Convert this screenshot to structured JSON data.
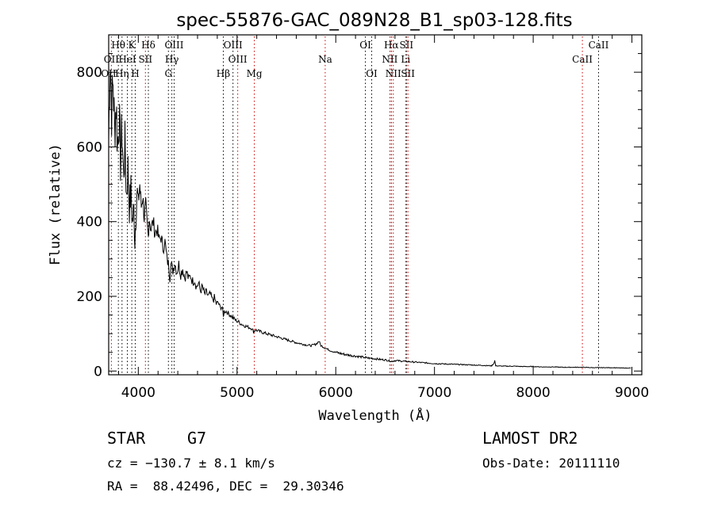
{
  "chart_data": {
    "type": "line",
    "title": "spec-55876-GAC_089N28_B1_sp03-128.fits",
    "xlabel": "Wavelength (Å)",
    "ylabel": "Flux (relative)",
    "xlim": [
      3700,
      9100
    ],
    "ylim": [
      -10,
      900
    ],
    "xticks": [
      4000,
      5000,
      6000,
      7000,
      8000,
      9000
    ],
    "yticks": [
      0,
      200,
      400,
      600,
      800
    ],
    "grid": false,
    "series": [
      {
        "color": "#000000",
        "points": [
          [
            3700,
            620
          ],
          [
            3715,
            850
          ],
          [
            3730,
            700
          ],
          [
            3745,
            780
          ],
          [
            3760,
            640
          ],
          [
            3775,
            720
          ],
          [
            3790,
            600
          ],
          [
            3805,
            690
          ],
          [
            3820,
            560
          ],
          [
            3835,
            650
          ],
          [
            3850,
            520
          ],
          [
            3865,
            600
          ],
          [
            3880,
            470
          ],
          [
            3895,
            540
          ],
          [
            3910,
            440
          ],
          [
            3925,
            480
          ],
          [
            3940,
            400
          ],
          [
            3955,
            430
          ],
          [
            3965,
            350
          ],
          [
            3975,
            420
          ],
          [
            3985,
            480
          ],
          [
            4000,
            450
          ],
          [
            4015,
            500
          ],
          [
            4030,
            440
          ],
          [
            4045,
            470
          ],
          [
            4060,
            410
          ],
          [
            4075,
            440
          ],
          [
            4090,
            390
          ],
          [
            4101,
            360
          ],
          [
            4110,
            410
          ],
          [
            4130,
            380
          ],
          [
            4150,
            400
          ],
          [
            4170,
            370
          ],
          [
            4190,
            380
          ],
          [
            4210,
            350
          ],
          [
            4230,
            360
          ],
          [
            4250,
            330
          ],
          [
            4270,
            345
          ],
          [
            4290,
            300
          ],
          [
            4310,
            280
          ],
          [
            4320,
            250
          ],
          [
            4330,
            285
          ],
          [
            4350,
            270
          ],
          [
            4370,
            290
          ],
          [
            4390,
            265
          ],
          [
            4410,
            285
          ],
          [
            4430,
            260
          ],
          [
            4450,
            275
          ],
          [
            4470,
            250
          ],
          [
            4490,
            265
          ],
          [
            4510,
            245
          ],
          [
            4530,
            255
          ],
          [
            4550,
            240
          ],
          [
            4570,
            245
          ],
          [
            4590,
            225
          ],
          [
            4610,
            235
          ],
          [
            4630,
            215
          ],
          [
            4650,
            225
          ],
          [
            4670,
            205
          ],
          [
            4690,
            210
          ],
          [
            4710,
            200
          ],
          [
            4730,
            205
          ],
          [
            4750,
            190
          ],
          [
            4770,
            195
          ],
          [
            4790,
            180
          ],
          [
            4810,
            183
          ],
          [
            4830,
            170
          ],
          [
            4850,
            172
          ],
          [
            4861,
            145
          ],
          [
            4870,
            160
          ],
          [
            4890,
            160
          ],
          [
            4910,
            155
          ],
          [
            4930,
            150
          ],
          [
            4950,
            145
          ],
          [
            4970,
            140
          ],
          [
            4990,
            135
          ],
          [
            5010,
            133
          ],
          [
            5030,
            128
          ],
          [
            5050,
            125
          ],
          [
            5070,
            122
          ],
          [
            5090,
            120
          ],
          [
            5110,
            118
          ],
          [
            5130,
            116
          ],
          [
            5150,
            114
          ],
          [
            5167,
            105
          ],
          [
            5175,
            108
          ],
          [
            5190,
            110
          ],
          [
            5210,
            108
          ],
          [
            5230,
            106
          ],
          [
            5250,
            104
          ],
          [
            5300,
            100
          ],
          [
            5350,
            96
          ],
          [
            5400,
            92
          ],
          [
            5450,
            88
          ],
          [
            5500,
            84
          ],
          [
            5550,
            80
          ],
          [
            5600,
            76
          ],
          [
            5650,
            73
          ],
          [
            5700,
            70
          ],
          [
            5750,
            68
          ],
          [
            5800,
            72
          ],
          [
            5830,
            80
          ],
          [
            5850,
            68
          ],
          [
            5890,
            62
          ],
          [
            5920,
            58
          ],
          [
            5950,
            54
          ],
          [
            6000,
            50
          ],
          [
            6050,
            47
          ],
          [
            6100,
            44
          ],
          [
            6150,
            42
          ],
          [
            6200,
            40
          ],
          [
            6250,
            38
          ],
          [
            6300,
            36
          ],
          [
            6350,
            34
          ],
          [
            6400,
            33
          ],
          [
            6450,
            31
          ],
          [
            6500,
            30
          ],
          [
            6563,
            26
          ],
          [
            6600,
            28
          ],
          [
            6650,
            27
          ],
          [
            6700,
            26
          ],
          [
            6750,
            25
          ],
          [
            6800,
            24
          ],
          [
            6850,
            23
          ],
          [
            6900,
            22
          ],
          [
            6950,
            21
          ],
          [
            7000,
            20
          ],
          [
            7100,
            19
          ],
          [
            7200,
            18
          ],
          [
            7300,
            17
          ],
          [
            7400,
            16
          ],
          [
            7500,
            15
          ],
          [
            7580,
            14
          ],
          [
            7600,
            20
          ],
          [
            7610,
            28
          ],
          [
            7620,
            14
          ],
          [
            7700,
            13
          ],
          [
            7800,
            13
          ],
          [
            7900,
            12
          ],
          [
            8000,
            12
          ],
          [
            8100,
            11
          ],
          [
            8200,
            11
          ],
          [
            8300,
            10
          ],
          [
            8400,
            10
          ],
          [
            8500,
            10
          ],
          [
            8600,
            9
          ],
          [
            8700,
            9
          ],
          [
            8800,
            9
          ],
          [
            8900,
            8
          ],
          [
            8990,
            8
          ]
        ]
      }
    ],
    "spectral_lines": [
      {
        "label": "Hθ",
        "wavelength": 3798,
        "color": "#000000",
        "row": 0
      },
      {
        "label": "K",
        "wavelength": 3934,
        "color": "#000000",
        "row": 0
      },
      {
        "label": "Hδ",
        "wavelength": 4102,
        "color": "#000000",
        "row": 0
      },
      {
        "label": "OIII",
        "wavelength": 4363,
        "color": "#000000",
        "row": 0
      },
      {
        "label": "OIII",
        "wavelength": 4959,
        "color": "#000000",
        "row": 0
      },
      {
        "label": "OI",
        "wavelength": 6300,
        "color": "#000000",
        "row": 0
      },
      {
        "label": "Hα",
        "wavelength": 6563,
        "color": "#000000",
        "row": 0
      },
      {
        "label": "SII",
        "wavelength": 6716,
        "color": "#000000",
        "row": 0
      },
      {
        "label": "CaII",
        "wavelength": 8662,
        "color": "#000000",
        "row": 0
      },
      {
        "label": "OII",
        "wavelength": 3727,
        "color": "#cc0000",
        "row": 1
      },
      {
        "label": "HeI",
        "wavelength": 3889,
        "color": "#000000",
        "row": 1
      },
      {
        "label": "SII",
        "wavelength": 4072,
        "color": "#cc0000",
        "row": 1
      },
      {
        "label": "Hγ",
        "wavelength": 4340,
        "color": "#000000",
        "row": 1
      },
      {
        "label": "OIII",
        "wavelength": 5007,
        "color": "#cc0000",
        "row": 1
      },
      {
        "label": "Na",
        "wavelength": 5893,
        "color": "#cc0000",
        "row": 1
      },
      {
        "label": "NII",
        "wavelength": 6548,
        "color": "#cc0000",
        "row": 1
      },
      {
        "label": "Li",
        "wavelength": 6708,
        "color": "#cc0000",
        "row": 1
      },
      {
        "label": "CaII",
        "wavelength": 8498,
        "color": "#cc0000",
        "row": 1
      },
      {
        "label": "OII",
        "wavelength": 3700,
        "color": "#cc0000",
        "row": 2
      },
      {
        "label": "Hη",
        "wavelength": 3835,
        "color": "#000000",
        "row": 2
      },
      {
        "label": "H",
        "wavelength": 3969,
        "color": "#000000",
        "row": 2
      },
      {
        "label": "G",
        "wavelength": 4305,
        "color": "#000000",
        "row": 2
      },
      {
        "label": "Hβ",
        "wavelength": 4861,
        "color": "#000000",
        "row": 2
      },
      {
        "label": "Mg",
        "wavelength": 5175,
        "color": "#cc0000",
        "row": 2
      },
      {
        "label": "OI",
        "wavelength": 6364,
        "color": "#000000",
        "row": 2
      },
      {
        "label": "NII",
        "wavelength": 6583,
        "color": "#cc0000",
        "row": 2
      },
      {
        "label": "SII",
        "wavelength": 6731,
        "color": "#cc0000",
        "row": 2
      }
    ]
  },
  "info": {
    "object_class": "STAR",
    "subclass": "G7",
    "survey": "LAMOST DR2",
    "redshift": "cz = −130.7 ± 8.1 km/s",
    "obs_date": "Obs-Date: 20111110",
    "coords": "RA =  88.42496, DEC =  29.30346"
  }
}
